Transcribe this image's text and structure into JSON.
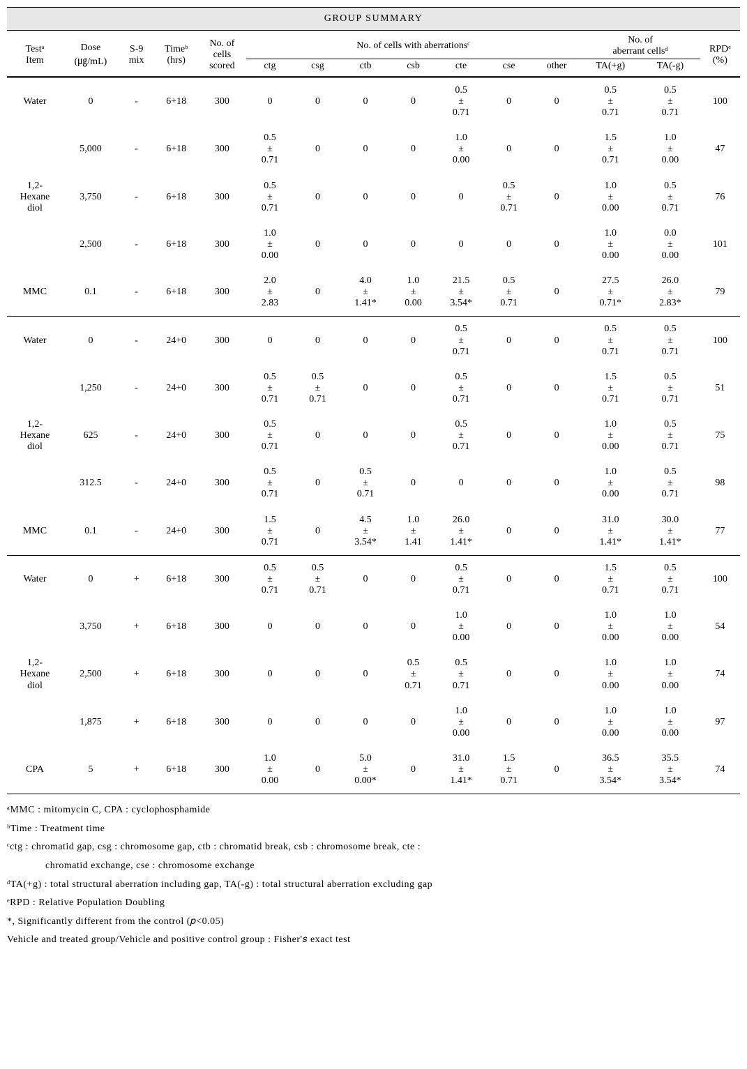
{
  "title": "GROUP  SUMMARY",
  "headers": {
    "test_item": "Testᵃ\nItem",
    "dose": "Dose\n(㎍/mL)",
    "s9": "S-9\nmix",
    "time": "Timeᵇ\n(hrs)",
    "cells_scored": "No. of\ncells\nscored",
    "aberrations": "No. of cells with aberrationsᶜ",
    "aberrant_cells": "No. of\naberrant cellsᵈ",
    "rpd": "RPDᵉ\n(%)",
    "sub": {
      "ctg": "ctg",
      "csg": "csg",
      "ctb": "ctb",
      "csb": "csb",
      "cte": "cte",
      "cse": "cse",
      "other": "other",
      "ta_g": "TA(+g)",
      "ta_ng": "TA(-g)"
    }
  },
  "sections": [
    {
      "rows": [
        {
          "item": "Water",
          "dose": "0",
          "s9": "-",
          "time": "6+18",
          "scored": "300",
          "ctg": "0",
          "csg": "0",
          "ctb": "0",
          "csb": "0",
          "cte": "0.5\n±\n0.71",
          "cse": "0",
          "other": "0",
          "tag": "0.5\n±\n0.71",
          "tang": "0.5\n±\n0.71",
          "rpd": "100"
        },
        {
          "item": "",
          "dose": "5,000",
          "s9": "-",
          "time": "6+18",
          "scored": "300",
          "ctg": "0.5\n±\n0.71",
          "csg": "0",
          "ctb": "0",
          "csb": "0",
          "cte": "1.0\n±\n0.00",
          "cse": "0",
          "other": "0",
          "tag": "1.5\n±\n0.71",
          "tang": "1.0\n±\n0.00",
          "rpd": "47"
        },
        {
          "item": "1,2-\nHexane\ndiol",
          "dose": "3,750",
          "s9": "-",
          "time": "6+18",
          "scored": "300",
          "ctg": "0.5\n±\n0.71",
          "csg": "0",
          "ctb": "0",
          "csb": "0",
          "cte": "0",
          "cse": "0.5\n±\n0.71",
          "other": "0",
          "tag": "1.0\n±\n0.00",
          "tang": "0.5\n±\n0.71",
          "rpd": "76"
        },
        {
          "item": "",
          "dose": "2,500",
          "s9": "-",
          "time": "6+18",
          "scored": "300",
          "ctg": "1.0\n±\n0.00",
          "csg": "0",
          "ctb": "0",
          "csb": "0",
          "cte": "0",
          "cse": "0",
          "other": "0",
          "tag": "1.0\n±\n0.00",
          "tang": "0.0\n±\n0.00",
          "rpd": "101"
        },
        {
          "item": "MMC",
          "dose": "0.1",
          "s9": "-",
          "time": "6+18",
          "scored": "300",
          "ctg": "2.0\n±\n2.83",
          "csg": "0",
          "ctb": "4.0\n±\n1.41*",
          "csb": "1.0\n±\n0.00",
          "cte": "21.5\n±\n3.54*",
          "cse": "0.5\n±\n0.71",
          "other": "0",
          "tag": "27.5\n±\n0.71*",
          "tang": "26.0\n±\n2.83*",
          "rpd": "79"
        }
      ]
    },
    {
      "rows": [
        {
          "item": "Water",
          "dose": "0",
          "s9": "-",
          "time": "24+0",
          "scored": "300",
          "ctg": "0",
          "csg": "0",
          "ctb": "0",
          "csb": "0",
          "cte": "0.5\n±\n0.71",
          "cse": "0",
          "other": "0",
          "tag": "0.5\n±\n0.71",
          "tang": "0.5\n±\n0.71",
          "rpd": "100"
        },
        {
          "item": "",
          "dose": "1,250",
          "s9": "-",
          "time": "24+0",
          "scored": "300",
          "ctg": "0.5\n±\n0.71",
          "csg": "0.5\n±\n0.71",
          "ctb": "0",
          "csb": "0",
          "cte": "0.5\n±\n0.71",
          "cse": "0",
          "other": "0",
          "tag": "1.5\n±\n0.71",
          "tang": "0.5\n±\n0.71",
          "rpd": "51"
        },
        {
          "item": "1,2-\nHexane\ndiol",
          "dose": "625",
          "s9": "-",
          "time": "24+0",
          "scored": "300",
          "ctg": "0.5\n±\n0.71",
          "csg": "0",
          "ctb": "0",
          "csb": "0",
          "cte": "0.5\n±\n0.71",
          "cse": "0",
          "other": "0",
          "tag": "1.0\n±\n0.00",
          "tang": "0.5\n±\n0.71",
          "rpd": "75"
        },
        {
          "item": "",
          "dose": "312.5",
          "s9": "-",
          "time": "24+0",
          "scored": "300",
          "ctg": "0.5\n±\n0.71",
          "csg": "0",
          "ctb": "0.5\n±\n0.71",
          "csb": "0",
          "cte": "0",
          "cse": "0",
          "other": "0",
          "tag": "1.0\n±\n0.00",
          "tang": "0.5\n±\n0.71",
          "rpd": "98"
        },
        {
          "item": "MMC",
          "dose": "0.1",
          "s9": "-",
          "time": "24+0",
          "scored": "300",
          "ctg": "1.5\n±\n0.71",
          "csg": "0",
          "ctb": "4.5\n±\n3.54*",
          "csb": "1.0\n±\n1.41",
          "cte": "26.0\n±\n1.41*",
          "cse": "0",
          "other": "0",
          "tag": "31.0\n±\n1.41*",
          "tang": "30.0\n±\n1.41*",
          "rpd": "77"
        }
      ]
    },
    {
      "rows": [
        {
          "item": "Water",
          "dose": "0",
          "s9": "+",
          "time": "6+18",
          "scored": "300",
          "ctg": "0.5\n±\n0.71",
          "csg": "0.5\n±\n0.71",
          "ctb": "0",
          "csb": "0",
          "cte": "0.5\n±\n0.71",
          "cse": "0",
          "other": "0",
          "tag": "1.5\n±\n0.71",
          "tang": "0.5\n±\n0.71",
          "rpd": "100"
        },
        {
          "item": "",
          "dose": "3,750",
          "s9": "+",
          "time": "6+18",
          "scored": "300",
          "ctg": "0",
          "csg": "0",
          "ctb": "0",
          "csb": "0",
          "cte": "1.0\n±\n0.00",
          "cse": "0",
          "other": "0",
          "tag": "1.0\n±\n0.00",
          "tang": "1.0\n±\n0.00",
          "rpd": "54"
        },
        {
          "item": "1,2-\nHexane\ndiol",
          "dose": "2,500",
          "s9": "+",
          "time": "6+18",
          "scored": "300",
          "ctg": "0",
          "csg": "0",
          "ctb": "0",
          "csb": "0.5\n±\n0.71",
          "cte": "0.5\n±\n0.71",
          "cse": "0",
          "other": "0",
          "tag": "1.0\n±\n0.00",
          "tang": "1.0\n±\n0.00",
          "rpd": "74"
        },
        {
          "item": "",
          "dose": "1,875",
          "s9": "+",
          "time": "6+18",
          "scored": "300",
          "ctg": "0",
          "csg": "0",
          "ctb": "0",
          "csb": "0",
          "cte": "1.0\n±\n0.00",
          "cse": "0",
          "other": "0",
          "tag": "1.0\n±\n0.00",
          "tang": "1.0\n±\n0.00",
          "rpd": "97"
        },
        {
          "item": "CPA",
          "dose": "5",
          "s9": "+",
          "time": "6+18",
          "scored": "300",
          "ctg": "1.0\n±\n0.00",
          "csg": "0",
          "ctb": "5.0\n±\n0.00*",
          "csb": "0",
          "cte": "31.0\n±\n1.41*",
          "cse": "1.5\n±\n0.71",
          "other": "0",
          "tag": "36.5\n±\n3.54*",
          "tang": "35.5\n±\n3.54*",
          "rpd": "74"
        }
      ]
    }
  ],
  "footnotes": {
    "a": "ᵃMMC : mitomycin C, CPA : cyclophosphamide",
    "b": "ᵇTime : Treatment time",
    "c1": "ᶜctg : chromatid gap, csg : chromosome gap, ctb : chromatid break, csb : chromosome break, cte :",
    "c2": "chromatid exchange, cse : chromosome exchange",
    "d": "ᵈTA(+g) : total structural aberration including gap, TA(-g) : total structural aberration excluding gap",
    "e": "ᵉRPD : Relative Population Doubling",
    "sig": "*, Significantly different from the control (𝑝<0.05)",
    "stat": "Vehicle and treated group/Vehicle and positive control group : Fisher'𝑠 exact test"
  },
  "col_widths": [
    "7%",
    "7%",
    "4.5%",
    "5.5%",
    "6%",
    "6%",
    "6%",
    "6%",
    "6%",
    "6%",
    "6%",
    "6%",
    "7.5%",
    "7.5%",
    "5%"
  ]
}
